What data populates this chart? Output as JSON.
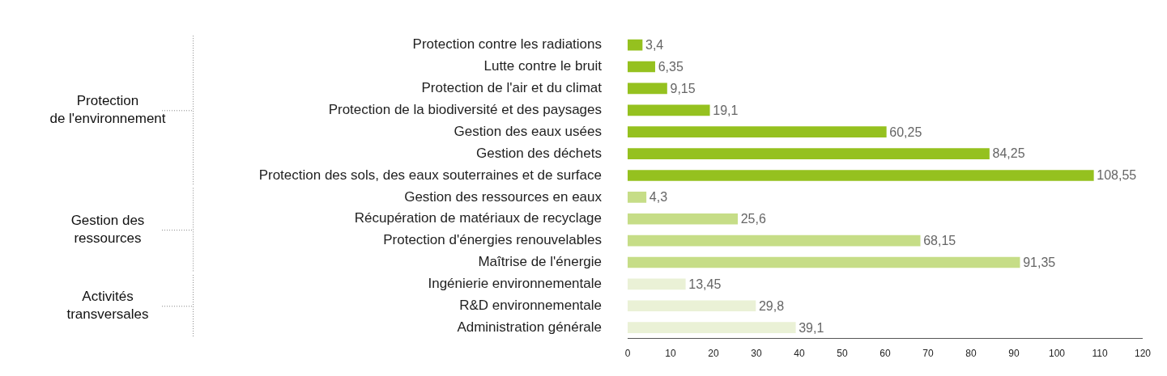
{
  "chart_data": {
    "type": "bar",
    "orientation": "horizontal",
    "categories": [
      "Protection contre les radiations",
      "Lutte contre le bruit",
      "Protection de l'air et du climat",
      "Protection de la biodiversité et des paysages",
      "Gestion des eaux usées",
      "Gestion des déchets",
      "Protection des sols, des eaux souterraines et de surface",
      "Gestion des ressources en eaux",
      "Récupération de matériaux de recyclage",
      "Protection d'énergies renouvelables",
      "Maîtrise de l'énergie",
      "Ingénierie environnementale",
      "R&D environnementale",
      "Administration générale"
    ],
    "values": [
      3.4,
      6.35,
      9.15,
      19.1,
      60.25,
      84.25,
      108.55,
      4.3,
      25.6,
      68.15,
      91.35,
      13.45,
      29.8,
      39.1
    ],
    "value_labels": [
      "3,4",
      "6,35",
      "9,15",
      "19,1",
      "60,25",
      "84,25",
      "108,55",
      "4,3",
      "25,6",
      "68,15",
      "91,35",
      "13,45",
      "29,8",
      "39,1"
    ],
    "colors": [
      "#95c11f",
      "#95c11f",
      "#95c11f",
      "#95c11f",
      "#95c11f",
      "#95c11f",
      "#95c11f",
      "#c6dd87",
      "#c6dd87",
      "#c6dd87",
      "#c6dd87",
      "#eaf1d6",
      "#eaf1d6",
      "#eaf1d6"
    ],
    "xlim": [
      0,
      120
    ],
    "xticks": [
      0,
      10,
      20,
      30,
      40,
      50,
      60,
      70,
      80,
      90,
      100,
      110,
      120
    ],
    "grid": false,
    "legend": false,
    "annotations": [
      "Protection\nde l'environnement",
      "Gestion des\nressources",
      "Activités\ntransversales"
    ]
  }
}
